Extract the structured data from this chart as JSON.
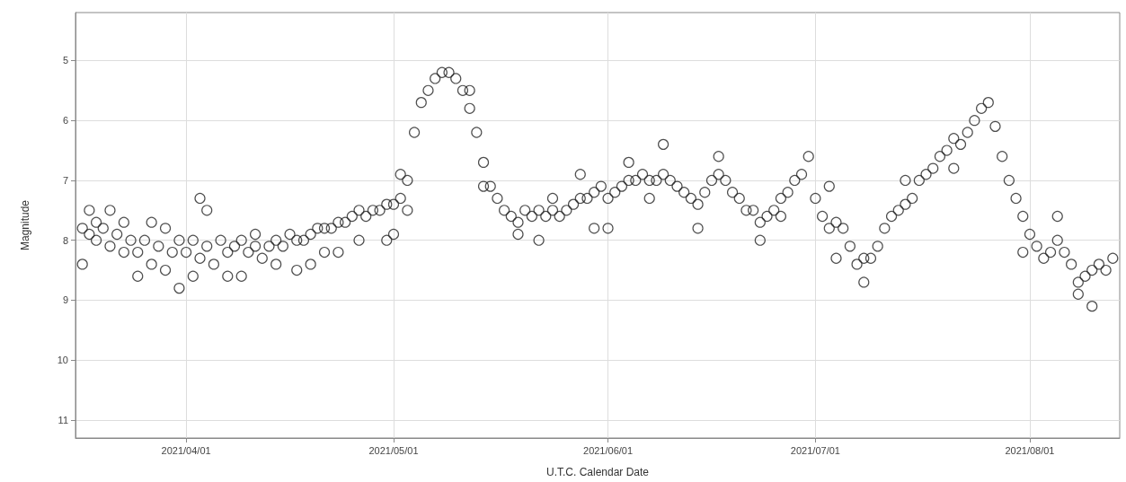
{
  "chart_data": {
    "type": "scatter",
    "xlabel": "U.T.C. Calendar Date",
    "ylabel": "Magnitude",
    "marker": "circle",
    "grid": true,
    "color": "#222222",
    "xlim": [
      "2021-03-16",
      "2021-08-14"
    ],
    "xticks": [
      {
        "value": "2021-04-01",
        "label": "2021/04/01"
      },
      {
        "value": "2021-05-01",
        "label": "2021/05/01"
      },
      {
        "value": "2021-06-01",
        "label": "2021/06/01"
      },
      {
        "value": "2021-07-01",
        "label": "2021/07/01"
      },
      {
        "value": "2021-08-01",
        "label": "2021/08/01"
      }
    ],
    "ylim": [
      11.3,
      4.2
    ],
    "yticks": [
      5,
      6,
      7,
      8,
      9,
      10,
      11
    ],
    "x": [
      "2021-03-17",
      "2021-03-17",
      "2021-03-18",
      "2021-03-18",
      "2021-03-19",
      "2021-03-19",
      "2021-03-20",
      "2021-03-21",
      "2021-03-21",
      "2021-03-22",
      "2021-03-23",
      "2021-03-23",
      "2021-03-24",
      "2021-03-25",
      "2021-03-25",
      "2021-03-26",
      "2021-03-27",
      "2021-03-27",
      "2021-03-28",
      "2021-03-29",
      "2021-03-29",
      "2021-03-30",
      "2021-03-31",
      "2021-03-31",
      "2021-04-01",
      "2021-04-02",
      "2021-04-02",
      "2021-04-03",
      "2021-04-03",
      "2021-04-04",
      "2021-04-04",
      "2021-04-05",
      "2021-04-06",
      "2021-04-07",
      "2021-04-07",
      "2021-04-08",
      "2021-04-09",
      "2021-04-09",
      "2021-04-10",
      "2021-04-11",
      "2021-04-11",
      "2021-04-12",
      "2021-04-13",
      "2021-04-14",
      "2021-04-14",
      "2021-04-15",
      "2021-04-16",
      "2021-04-17",
      "2021-04-17",
      "2021-04-18",
      "2021-04-19",
      "2021-04-19",
      "2021-04-20",
      "2021-04-21",
      "2021-04-21",
      "2021-04-22",
      "2021-04-23",
      "2021-04-23",
      "2021-04-24",
      "2021-04-25",
      "2021-04-26",
      "2021-04-26",
      "2021-04-27",
      "2021-04-28",
      "2021-04-29",
      "2021-04-30",
      "2021-04-30",
      "2021-05-01",
      "2021-05-01",
      "2021-05-02",
      "2021-05-02",
      "2021-05-03",
      "2021-05-03",
      "2021-05-04",
      "2021-05-05",
      "2021-05-06",
      "2021-05-07",
      "2021-05-08",
      "2021-05-09",
      "2021-05-10",
      "2021-05-11",
      "2021-05-12",
      "2021-05-12",
      "2021-05-13",
      "2021-05-14",
      "2021-05-14",
      "2021-05-15",
      "2021-05-16",
      "2021-05-17",
      "2021-05-18",
      "2021-05-19",
      "2021-05-19",
      "2021-05-20",
      "2021-05-21",
      "2021-05-22",
      "2021-05-22",
      "2021-05-23",
      "2021-05-24",
      "2021-05-24",
      "2021-05-25",
      "2021-05-26",
      "2021-05-27",
      "2021-05-28",
      "2021-05-28",
      "2021-05-29",
      "2021-05-30",
      "2021-05-30",
      "2021-05-31",
      "2021-06-01",
      "2021-06-01",
      "2021-06-02",
      "2021-06-03",
      "2021-06-04",
      "2021-06-04",
      "2021-06-05",
      "2021-06-06",
      "2021-06-07",
      "2021-06-07",
      "2021-06-08",
      "2021-06-09",
      "2021-06-09",
      "2021-06-10",
      "2021-06-11",
      "2021-06-12",
      "2021-06-13",
      "2021-06-14",
      "2021-06-14",
      "2021-06-15",
      "2021-06-16",
      "2021-06-17",
      "2021-06-17",
      "2021-06-18",
      "2021-06-19",
      "2021-06-20",
      "2021-06-21",
      "2021-06-22",
      "2021-06-23",
      "2021-06-23",
      "2021-06-24",
      "2021-06-25",
      "2021-06-26",
      "2021-06-26",
      "2021-06-27",
      "2021-06-28",
      "2021-06-29",
      "2021-06-30",
      "2021-07-01",
      "2021-07-02",
      "2021-07-03",
      "2021-07-03",
      "2021-07-04",
      "2021-07-04",
      "2021-07-05",
      "2021-07-06",
      "2021-07-07",
      "2021-07-08",
      "2021-07-08",
      "2021-07-09",
      "2021-07-10",
      "2021-07-11",
      "2021-07-12",
      "2021-07-13",
      "2021-07-14",
      "2021-07-14",
      "2021-07-15",
      "2021-07-16",
      "2021-07-17",
      "2021-07-18",
      "2021-07-19",
      "2021-07-20",
      "2021-07-21",
      "2021-07-21",
      "2021-07-22",
      "2021-07-23",
      "2021-07-24",
      "2021-07-25",
      "2021-07-26",
      "2021-07-27",
      "2021-07-28",
      "2021-07-29",
      "2021-07-30",
      "2021-07-31",
      "2021-07-31",
      "2021-08-01",
      "2021-08-02",
      "2021-08-03",
      "2021-08-04",
      "2021-08-05",
      "2021-08-05",
      "2021-08-06",
      "2021-08-07",
      "2021-08-08",
      "2021-08-08",
      "2021-08-09",
      "2021-08-10",
      "2021-08-10",
      "2021-08-11",
      "2021-08-12",
      "2021-08-13"
    ],
    "values": [
      7.8,
      8.4,
      7.5,
      7.9,
      7.7,
      8.0,
      7.8,
      7.5,
      8.1,
      7.9,
      7.7,
      8.2,
      8.0,
      8.2,
      8.6,
      8.0,
      7.7,
      8.4,
      8.1,
      7.8,
      8.5,
      8.2,
      8.0,
      8.8,
      8.2,
      8.0,
      8.6,
      8.3,
      7.3,
      8.1,
      7.5,
      8.4,
      8.0,
      8.2,
      8.6,
      8.1,
      8.0,
      8.6,
      8.2,
      8.1,
      7.9,
      8.3,
      8.1,
      8.0,
      8.4,
      8.1,
      7.9,
      8.0,
      8.5,
      8.0,
      7.9,
      8.4,
      7.8,
      7.8,
      8.2,
      7.8,
      7.7,
      8.2,
      7.7,
      7.6,
      7.5,
      8.0,
      7.6,
      7.5,
      7.5,
      7.4,
      8.0,
      7.4,
      7.9,
      7.3,
      6.9,
      7.0,
      7.5,
      6.2,
      5.7,
      5.5,
      5.3,
      5.2,
      5.2,
      5.3,
      5.5,
      5.8,
      5.5,
      6.2,
      6.7,
      7.1,
      7.1,
      7.3,
      7.5,
      7.6,
      7.7,
      7.9,
      7.5,
      7.6,
      7.5,
      8.0,
      7.6,
      7.5,
      7.3,
      7.6,
      7.5,
      7.4,
      7.3,
      6.9,
      7.3,
      7.2,
      7.8,
      7.1,
      7.3,
      7.8,
      7.2,
      7.1,
      7.0,
      6.7,
      7.0,
      6.9,
      7.0,
      7.3,
      7.0,
      6.9,
      6.4,
      7.0,
      7.1,
      7.2,
      7.3,
      7.4,
      7.8,
      7.2,
      7.0,
      6.9,
      6.6,
      7.0,
      7.2,
      7.3,
      7.5,
      7.5,
      7.7,
      8.0,
      7.6,
      7.5,
      7.6,
      7.3,
      7.2,
      7.0,
      6.9,
      6.6,
      7.3,
      7.6,
      7.8,
      7.1,
      7.7,
      8.3,
      7.8,
      8.1,
      8.4,
      8.7,
      8.3,
      8.3,
      8.1,
      7.8,
      7.6,
      7.5,
      7.4,
      7.0,
      7.3,
      7.0,
      6.9,
      6.8,
      6.6,
      6.5,
      6.3,
      6.8,
      6.4,
      6.2,
      6.0,
      5.8,
      5.7,
      6.1,
      6.6,
      7.0,
      7.3,
      7.6,
      8.2,
      7.9,
      8.1,
      8.3,
      8.2,
      8.0,
      7.6,
      8.2,
      8.4,
      8.7,
      8.9,
      8.6,
      8.5,
      9.1,
      8.4,
      8.5,
      8.3
    ]
  }
}
